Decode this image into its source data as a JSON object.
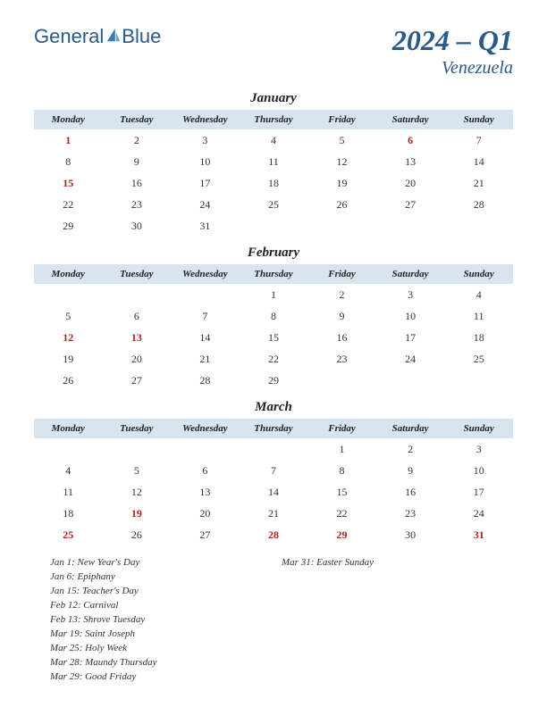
{
  "logo": {
    "text1": "General",
    "text2": "Blue"
  },
  "title": "2024 – Q1",
  "subtitle": "Venezuela",
  "colors": {
    "brand": "#2a5a8a",
    "header_bg": "#d9e4f1",
    "holiday": "#b02020",
    "text": "#333333",
    "background": "#ffffff"
  },
  "weekdays": [
    "Monday",
    "Tuesday",
    "Wednesday",
    "Thursday",
    "Friday",
    "Saturday",
    "Sunday"
  ],
  "months": [
    {
      "name": "January",
      "weeks": [
        [
          {
            "d": 1,
            "h": true
          },
          {
            "d": 2
          },
          {
            "d": 3
          },
          {
            "d": 4
          },
          {
            "d": 5
          },
          {
            "d": 6,
            "h": true
          },
          {
            "d": 7
          }
        ],
        [
          {
            "d": 8
          },
          {
            "d": 9
          },
          {
            "d": 10
          },
          {
            "d": 11
          },
          {
            "d": 12
          },
          {
            "d": 13
          },
          {
            "d": 14
          }
        ],
        [
          {
            "d": 15,
            "h": true
          },
          {
            "d": 16
          },
          {
            "d": 17
          },
          {
            "d": 18
          },
          {
            "d": 19
          },
          {
            "d": 20
          },
          {
            "d": 21
          }
        ],
        [
          {
            "d": 22
          },
          {
            "d": 23
          },
          {
            "d": 24
          },
          {
            "d": 25
          },
          {
            "d": 26
          },
          {
            "d": 27
          },
          {
            "d": 28
          }
        ],
        [
          {
            "d": 29
          },
          {
            "d": 30
          },
          {
            "d": 31
          },
          null,
          null,
          null,
          null
        ]
      ]
    },
    {
      "name": "February",
      "weeks": [
        [
          null,
          null,
          null,
          {
            "d": 1
          },
          {
            "d": 2
          },
          {
            "d": 3
          },
          {
            "d": 4
          }
        ],
        [
          {
            "d": 5
          },
          {
            "d": 6
          },
          {
            "d": 7
          },
          {
            "d": 8
          },
          {
            "d": 9
          },
          {
            "d": 10
          },
          {
            "d": 11
          }
        ],
        [
          {
            "d": 12,
            "h": true
          },
          {
            "d": 13,
            "h": true
          },
          {
            "d": 14
          },
          {
            "d": 15
          },
          {
            "d": 16
          },
          {
            "d": 17
          },
          {
            "d": 18
          }
        ],
        [
          {
            "d": 19
          },
          {
            "d": 20
          },
          {
            "d": 21
          },
          {
            "d": 22
          },
          {
            "d": 23
          },
          {
            "d": 24
          },
          {
            "d": 25
          }
        ],
        [
          {
            "d": 26
          },
          {
            "d": 27
          },
          {
            "d": 28
          },
          {
            "d": 29
          },
          null,
          null,
          null
        ]
      ]
    },
    {
      "name": "March",
      "weeks": [
        [
          null,
          null,
          null,
          null,
          {
            "d": 1
          },
          {
            "d": 2
          },
          {
            "d": 3
          }
        ],
        [
          {
            "d": 4
          },
          {
            "d": 5
          },
          {
            "d": 6
          },
          {
            "d": 7
          },
          {
            "d": 8
          },
          {
            "d": 9
          },
          {
            "d": 10
          }
        ],
        [
          {
            "d": 11
          },
          {
            "d": 12
          },
          {
            "d": 13
          },
          {
            "d": 14
          },
          {
            "d": 15
          },
          {
            "d": 16
          },
          {
            "d": 17
          }
        ],
        [
          {
            "d": 18
          },
          {
            "d": 19,
            "h": true
          },
          {
            "d": 20
          },
          {
            "d": 21
          },
          {
            "d": 22
          },
          {
            "d": 23
          },
          {
            "d": 24
          }
        ],
        [
          {
            "d": 25,
            "h": true
          },
          {
            "d": 26
          },
          {
            "d": 27
          },
          {
            "d": 28,
            "h": true
          },
          {
            "d": 29,
            "h": true
          },
          {
            "d": 30
          },
          {
            "d": 31,
            "h": true
          }
        ]
      ]
    }
  ],
  "holidays_left": [
    "Jan 1: New Year's Day",
    "Jan 6: Epiphany",
    "Jan 15: Teacher's Day",
    "Feb 12: Carnival",
    "Feb 13: Shrove Tuesday",
    "Mar 19: Saint Joseph",
    "Mar 25: Holy Week",
    "Mar 28: Maundy Thursday",
    "Mar 29: Good Friday"
  ],
  "holidays_right": [
    "Mar 31: Easter Sunday"
  ]
}
